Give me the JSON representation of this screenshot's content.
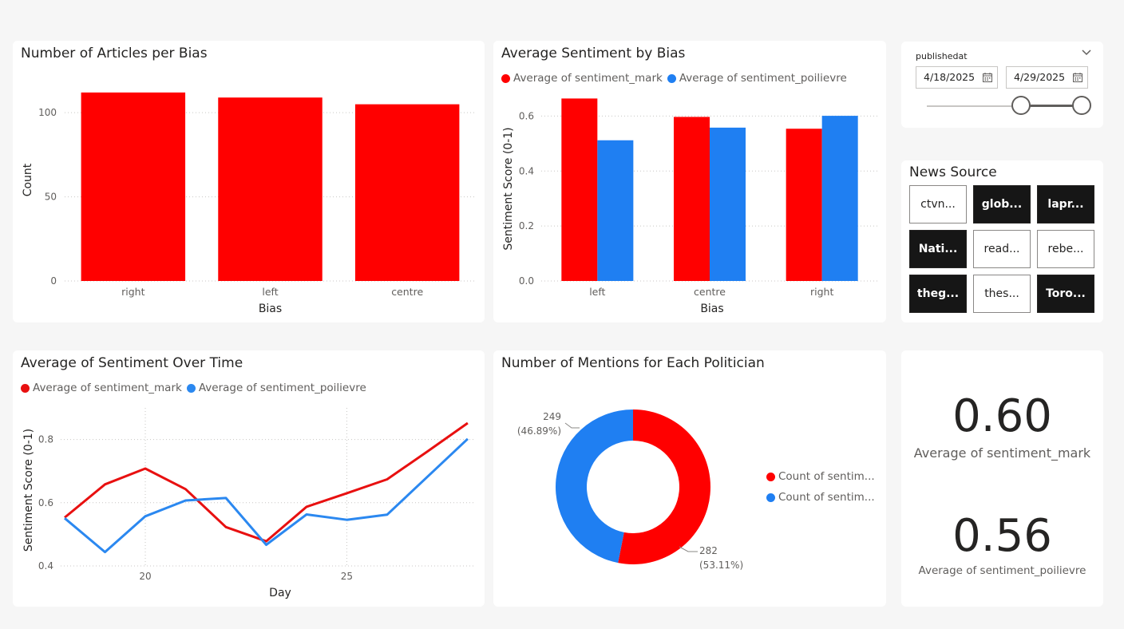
{
  "colors": {
    "mark": "#ff0000",
    "poilievre": "#1f7ff2",
    "line_mark": "#e81010",
    "line_poilievre": "#2b88f0"
  },
  "bias_count": {
    "title": "Number of Articles per Bias",
    "chart_data": {
      "type": "bar",
      "title": "Number of Articles per Bias",
      "xlabel": "Bias",
      "ylabel": "Count",
      "categories": [
        "right",
        "left",
        "centre"
      ],
      "values": [
        112,
        109,
        105
      ],
      "yticks": [
        "0",
        "50",
        "100"
      ],
      "ylim": [
        0,
        120
      ],
      "grid": true
    }
  },
  "bias_sentiment": {
    "title": "Average Sentiment by Bias",
    "legend": [
      "Average of sentiment_mark",
      "Average of sentiment_poilievre"
    ],
    "chart_data": {
      "type": "bar",
      "title": "Average Sentiment by Bias",
      "xlabel": "Bias",
      "ylabel": "Sentiment Score (0-1)",
      "categories": [
        "left",
        "centre",
        "right"
      ],
      "series": [
        {
          "name": "Average of sentiment_mark",
          "values": [
            0.664,
            0.597,
            0.554
          ]
        },
        {
          "name": "Average of sentiment_poilievre",
          "values": [
            0.512,
            0.558,
            0.601
          ]
        }
      ],
      "yticks": [
        "0.0",
        "0.2",
        "0.4",
        "0.6"
      ],
      "ylim": [
        0,
        0.7
      ],
      "grid": true,
      "legend_position": "top-left"
    }
  },
  "time_sentiment": {
    "title": "Average of Sentiment Over Time",
    "legend": [
      "Average of sentiment_mark",
      "Average of sentiment_poilievre"
    ],
    "chart_data": {
      "type": "line",
      "title": "Average of Sentiment Over Time",
      "xlabel": "Day",
      "ylabel": "Sentiment Score (0-1)",
      "x": [
        18,
        19,
        20,
        21,
        22,
        23,
        24,
        25,
        26,
        27,
        28
      ],
      "series": [
        {
          "name": "Average of sentiment_mark",
          "values": [
            0.553,
            0.658,
            0.708,
            0.643,
            0.523,
            0.478,
            0.587,
            0.63,
            0.674,
            0.762,
            0.852
          ]
        },
        {
          "name": "Average of sentiment_poilievre",
          "values": [
            0.551,
            0.444,
            0.557,
            0.607,
            0.615,
            0.467,
            0.563,
            0.546,
            0.562,
            0.682,
            0.802
          ]
        }
      ],
      "xticks": [
        "20",
        "25"
      ],
      "yticks": [
        "0.4",
        "0.6",
        "0.8"
      ],
      "ylim": [
        0.4,
        0.9
      ],
      "xlim": [
        17.9,
        28.2
      ],
      "grid": true,
      "legend_position": "top-left"
    }
  },
  "mentions": {
    "title": "Number of Mentions for Each Politician",
    "legend": [
      "Count of sentim...",
      "Count of sentim..."
    ],
    "chart_data": {
      "type": "pie",
      "title": "Number of Mentions for Each Politician",
      "donut": true,
      "slices": [
        {
          "label": "Count of sentim...",
          "value": 282,
          "value_label": "282",
          "pct_label": "(53.11%)"
        },
        {
          "label": "Count of sentim...",
          "value": 249,
          "value_label": "249",
          "pct_label": "(46.89%)"
        }
      ],
      "legend_position": "right"
    }
  },
  "date_slicer": {
    "label": "publishedat",
    "start": "4/18/2025",
    "end": "4/29/2025",
    "range_start_fraction": 0.61,
    "range_end_fraction": 1.0
  },
  "news_source": {
    "title": "News Source",
    "tiles": [
      {
        "label": "ctvn...",
        "selected": false
      },
      {
        "label": "glob...",
        "selected": true
      },
      {
        "label": "lapr...",
        "selected": true
      },
      {
        "label": "Nati...",
        "selected": true
      },
      {
        "label": "read...",
        "selected": false
      },
      {
        "label": "rebe...",
        "selected": false
      },
      {
        "label": "theg...",
        "selected": true
      },
      {
        "label": "thes...",
        "selected": false
      },
      {
        "label": "Toro...",
        "selected": true
      }
    ]
  },
  "kpis": [
    {
      "value": "0.60",
      "label": "Average of sentiment_mark"
    },
    {
      "value": "0.56",
      "label": "Average of sentiment_poilievre"
    }
  ]
}
